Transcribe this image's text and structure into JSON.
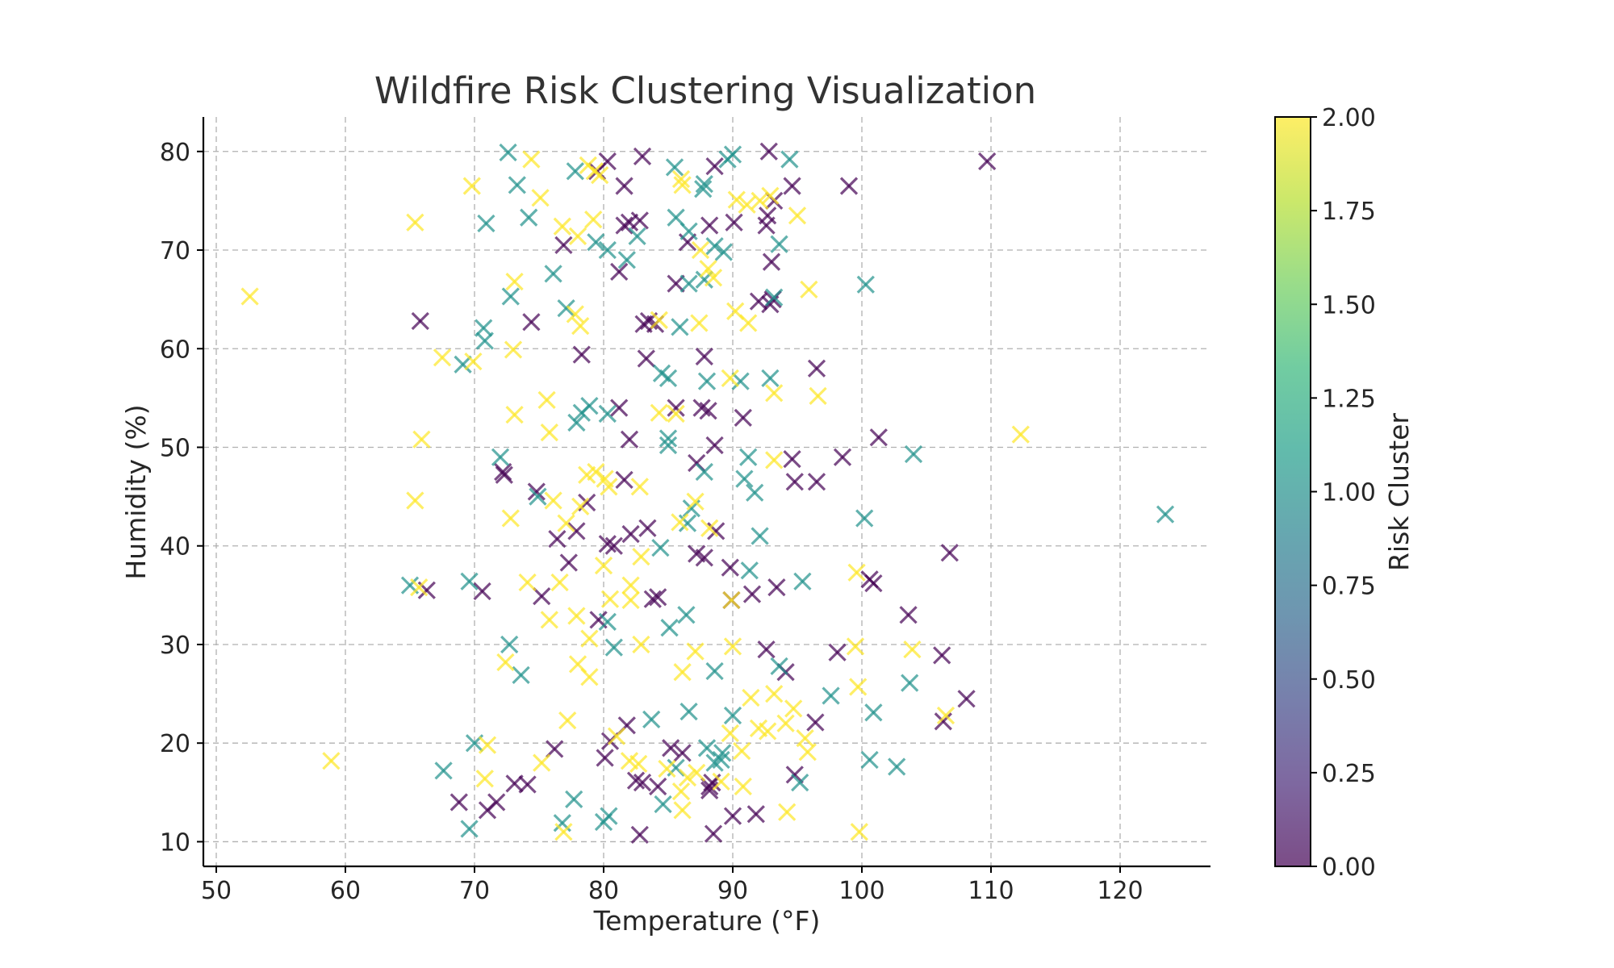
{
  "chart_data": {
    "type": "scatter",
    "title": "Wildfire Risk Clustering Visualization",
    "xlabel": "Temperature (°F)",
    "ylabel": "Humidity (%)",
    "xlim": [
      49,
      127
    ],
    "ylim": [
      7.5,
      83.5
    ],
    "xticks": [
      50,
      60,
      70,
      80,
      90,
      100,
      110,
      120
    ],
    "yticks": [
      10,
      20,
      30,
      40,
      50,
      60,
      70,
      80
    ],
    "grid": true,
    "marker": "x",
    "alpha": 0.7,
    "colorbar": {
      "label": "Risk Cluster",
      "range": [
        0,
        2
      ],
      "ticks": [
        "0.00",
        "0.25",
        "0.50",
        "0.75",
        "1.00",
        "1.25",
        "1.50",
        "1.75",
        "2.00"
      ],
      "colormap": "viridis",
      "colors": [
        "#440154",
        "#482878",
        "#3e4989",
        "#31688e",
        "#26828e",
        "#1f9e89",
        "#35b779",
        "#6ece58",
        "#b5de2b",
        "#fde725"
      ]
    },
    "series": [
      {
        "cluster": 0,
        "color": "#440154",
        "points": [
          [
            79.5,
            78
          ],
          [
            80.3,
            79
          ],
          [
            83,
            79.5
          ],
          [
            81.6,
            76.5
          ],
          [
            88.6,
            78.5
          ],
          [
            92.8,
            80
          ],
          [
            99,
            76.5
          ],
          [
            109.7,
            79
          ],
          [
            94.6,
            76.5
          ],
          [
            93.2,
            75
          ],
          [
            76.9,
            70.5
          ],
          [
            81.6,
            72.5
          ],
          [
            82.8,
            73
          ],
          [
            82,
            72.8
          ],
          [
            88.2,
            72.5
          ],
          [
            90.1,
            72.8
          ],
          [
            92.6,
            72.5
          ],
          [
            92.7,
            73.5
          ],
          [
            86.5,
            70.8
          ],
          [
            81.2,
            67.8
          ],
          [
            93,
            68.8
          ],
          [
            85.6,
            66.6
          ],
          [
            92,
            64.8
          ],
          [
            92.9,
            64.5
          ],
          [
            93.1,
            65
          ],
          [
            65.8,
            62.8
          ],
          [
            74.4,
            62.7
          ],
          [
            83.1,
            62.5
          ],
          [
            84,
            62.5
          ],
          [
            83.5,
            62.8
          ],
          [
            78.3,
            59.4
          ],
          [
            83.3,
            59
          ],
          [
            87.8,
            59.2
          ],
          [
            96.5,
            58
          ],
          [
            81.2,
            54
          ],
          [
            85.6,
            54
          ],
          [
            87.6,
            54
          ],
          [
            88.1,
            53.7
          ],
          [
            90.8,
            53
          ],
          [
            82,
            50.8
          ],
          [
            88.6,
            50.2
          ],
          [
            87.2,
            48.4
          ],
          [
            94.6,
            48.8
          ],
          [
            98.5,
            49
          ],
          [
            101.3,
            51
          ],
          [
            72.2,
            47.5
          ],
          [
            72.3,
            47.2
          ],
          [
            81.6,
            46.7
          ],
          [
            94.8,
            46.5
          ],
          [
            96.5,
            46.5
          ],
          [
            74.8,
            45.5
          ],
          [
            78.7,
            44.4
          ],
          [
            88.7,
            41.5
          ],
          [
            77.9,
            41.5
          ],
          [
            76.4,
            40.7
          ],
          [
            80.3,
            40.2
          ],
          [
            80.8,
            40
          ],
          [
            82.1,
            41.2
          ],
          [
            83.4,
            41.8
          ],
          [
            87.2,
            39.2
          ],
          [
            87.8,
            38.8
          ],
          [
            77.3,
            38.3
          ],
          [
            89.8,
            37.8
          ],
          [
            100.6,
            36.6
          ],
          [
            100.9,
            36.2
          ],
          [
            106.8,
            39.3
          ],
          [
            66.3,
            35.5
          ],
          [
            70.6,
            35.4
          ],
          [
            75.2,
            34.9
          ],
          [
            83.8,
            34.6
          ],
          [
            84.2,
            34.8
          ],
          [
            89.9,
            34.5
          ],
          [
            91.5,
            35.1
          ],
          [
            93.4,
            35.8
          ],
          [
            79.6,
            32.5
          ],
          [
            103.6,
            33
          ],
          [
            92.6,
            29.5
          ],
          [
            98.1,
            29.2
          ],
          [
            106.2,
            28.9
          ],
          [
            94.1,
            27.2
          ],
          [
            96.4,
            22.1
          ],
          [
            106.3,
            22.2
          ],
          [
            108.1,
            24.5
          ],
          [
            81.8,
            21.8
          ],
          [
            80.5,
            20.2
          ],
          [
            76.2,
            19.4
          ],
          [
            85.2,
            19.5
          ],
          [
            86.1,
            19
          ],
          [
            80.1,
            18.5
          ],
          [
            82.5,
            16.2
          ],
          [
            83,
            16
          ],
          [
            84.2,
            15.6
          ],
          [
            88.2,
            15.2
          ],
          [
            88.4,
            16
          ],
          [
            88.2,
            15.6
          ],
          [
            94.8,
            16.8
          ],
          [
            73.1,
            15.9
          ],
          [
            74.1,
            15.8
          ],
          [
            71.7,
            14
          ],
          [
            71,
            13.2
          ],
          [
            68.8,
            14
          ],
          [
            90,
            12.6
          ],
          [
            91.8,
            12.8
          ],
          [
            82.8,
            10.7
          ],
          [
            88.5,
            10.8
          ]
        ]
      },
      {
        "cluster": 1,
        "color": "#21918c",
        "points": [
          [
            72.6,
            79.9
          ],
          [
            85.5,
            78.4
          ],
          [
            77.8,
            78
          ],
          [
            89.6,
            79.2
          ],
          [
            90,
            79.7
          ],
          [
            94.4,
            79.2
          ],
          [
            73.3,
            76.6
          ],
          [
            87.8,
            76.7
          ],
          [
            87.7,
            76.2
          ],
          [
            70.9,
            72.7
          ],
          [
            74.2,
            73.3
          ],
          [
            85.6,
            73.3
          ],
          [
            86.6,
            71.9
          ],
          [
            82.6,
            71.4
          ],
          [
            79.4,
            70.8
          ],
          [
            80.3,
            70
          ],
          [
            88.6,
            70.4
          ],
          [
            89.3,
            69.8
          ],
          [
            93.6,
            70.6
          ],
          [
            81.8,
            69
          ],
          [
            76.1,
            67.6
          ],
          [
            87.8,
            67
          ],
          [
            86.6,
            66.6
          ],
          [
            100.3,
            66.5
          ],
          [
            72.8,
            65.3
          ],
          [
            93.2,
            65.2
          ],
          [
            77.1,
            64.1
          ],
          [
            70.7,
            62.1
          ],
          [
            70.8,
            60.8
          ],
          [
            85.9,
            62.2
          ],
          [
            69.1,
            58.4
          ],
          [
            84.5,
            57.5
          ],
          [
            85,
            57
          ],
          [
            88,
            56.7
          ],
          [
            90.6,
            56.7
          ],
          [
            92.9,
            57
          ],
          [
            78.9,
            54.2
          ],
          [
            78.3,
            53.5
          ],
          [
            77.9,
            52.5
          ],
          [
            80.3,
            53.4
          ],
          [
            85,
            50.9
          ],
          [
            85,
            50.2
          ],
          [
            87.8,
            47.5
          ],
          [
            91.2,
            49
          ],
          [
            90.9,
            46.8
          ],
          [
            91.7,
            45.4
          ],
          [
            104,
            49.3
          ],
          [
            72,
            49
          ],
          [
            74.9,
            45
          ],
          [
            86.8,
            43.8
          ],
          [
            86.5,
            42.3
          ],
          [
            92.1,
            41
          ],
          [
            100.2,
            42.8
          ],
          [
            123.5,
            43.2
          ],
          [
            84.4,
            39.8
          ],
          [
            91.3,
            37.5
          ],
          [
            95.4,
            36.4
          ],
          [
            65,
            36
          ],
          [
            69.6,
            36.4
          ],
          [
            86.4,
            33
          ],
          [
            85.1,
            31.7
          ],
          [
            80.3,
            32.3
          ],
          [
            80.8,
            29.7
          ],
          [
            72.7,
            30
          ],
          [
            73.6,
            26.9
          ],
          [
            88.6,
            27.3
          ],
          [
            93.6,
            27.8
          ],
          [
            97.6,
            24.8
          ],
          [
            103.7,
            26.1
          ],
          [
            86.6,
            23.2
          ],
          [
            90,
            22.8
          ],
          [
            83.7,
            22.4
          ],
          [
            100.9,
            23.1
          ],
          [
            70,
            20
          ],
          [
            88,
            19.5
          ],
          [
            89.1,
            18.3
          ],
          [
            89.2,
            19
          ],
          [
            88.6,
            18
          ],
          [
            100.6,
            18.3
          ],
          [
            102.7,
            17.6
          ],
          [
            67.6,
            17.2
          ],
          [
            85.6,
            17.5
          ],
          [
            77.7,
            14.3
          ],
          [
            80.4,
            12.6
          ],
          [
            80,
            12
          ],
          [
            76.8,
            11.9
          ],
          [
            69.6,
            11.3
          ],
          [
            84.6,
            13.8
          ],
          [
            95.2,
            16
          ]
        ]
      },
      {
        "cluster": 2,
        "color": "#fde725",
        "points": [
          [
            74.4,
            79.2
          ],
          [
            78.8,
            78.6
          ],
          [
            79.7,
            77.6
          ],
          [
            79.3,
            78
          ],
          [
            69.8,
            76.5
          ],
          [
            75.1,
            75.3
          ],
          [
            86,
            77.2
          ],
          [
            86.1,
            76.6
          ],
          [
            90.3,
            75.1
          ],
          [
            92.1,
            75
          ],
          [
            92.9,
            75.5
          ],
          [
            91.1,
            74.6
          ],
          [
            95,
            73.5
          ],
          [
            65.4,
            72.8
          ],
          [
            76.8,
            72.4
          ],
          [
            79.2,
            73.1
          ],
          [
            78,
            71.4
          ],
          [
            87.5,
            70
          ],
          [
            88.1,
            68.1
          ],
          [
            88.5,
            67.2
          ],
          [
            73.1,
            66.8
          ],
          [
            95.9,
            66
          ],
          [
            52.6,
            65.3
          ],
          [
            77.8,
            63.5
          ],
          [
            78.2,
            62.3
          ],
          [
            84.3,
            62.9
          ],
          [
            87.4,
            62.6
          ],
          [
            90.2,
            63.8
          ],
          [
            91.2,
            62.6
          ],
          [
            67.5,
            59.1
          ],
          [
            69.9,
            58.7
          ],
          [
            73,
            59.9
          ],
          [
            89.8,
            57
          ],
          [
            75.6,
            54.8
          ],
          [
            85.6,
            53.4
          ],
          [
            84.3,
            53.5
          ],
          [
            93.2,
            55.5
          ],
          [
            96.6,
            55.2
          ],
          [
            73.1,
            53.3
          ],
          [
            75.8,
            51.5
          ],
          [
            65.9,
            50.8
          ],
          [
            112.3,
            51.3
          ],
          [
            93.2,
            48.7
          ],
          [
            79.4,
            47.5
          ],
          [
            78.7,
            47.2
          ],
          [
            80.1,
            46.8
          ],
          [
            80.4,
            46
          ],
          [
            82.8,
            46
          ],
          [
            65.4,
            44.6
          ],
          [
            76.1,
            44.6
          ],
          [
            78.2,
            44
          ],
          [
            87.1,
            44.5
          ],
          [
            72.8,
            42.8
          ],
          [
            77.1,
            42.3
          ],
          [
            85.9,
            42.4
          ],
          [
            88.2,
            41.8
          ],
          [
            80,
            38
          ],
          [
            82.9,
            38.9
          ],
          [
            74.1,
            36.3
          ],
          [
            76.6,
            36.3
          ],
          [
            82.1,
            36
          ],
          [
            99.6,
            37.3
          ],
          [
            65.7,
            35.8
          ],
          [
            80.5,
            34.6
          ],
          [
            82.1,
            34.5
          ],
          [
            75.8,
            32.5
          ],
          [
            77.9,
            32.9
          ],
          [
            89.9,
            34.5
          ],
          [
            78.9,
            30.6
          ],
          [
            82.9,
            30
          ],
          [
            87.1,
            29.3
          ],
          [
            90,
            29.8
          ],
          [
            99.5,
            29.8
          ],
          [
            103.9,
            29.5
          ],
          [
            72.4,
            28.2
          ],
          [
            78,
            28
          ],
          [
            78.9,
            26.7
          ],
          [
            86.1,
            27.2
          ],
          [
            91.4,
            24.6
          ],
          [
            93.2,
            25
          ],
          [
            94.7,
            23.5
          ],
          [
            99.7,
            25.7
          ],
          [
            106.5,
            22.8
          ],
          [
            77.2,
            22.3
          ],
          [
            81,
            20.7
          ],
          [
            89.8,
            21
          ],
          [
            92,
            21.5
          ],
          [
            92.7,
            21.2
          ],
          [
            94.1,
            22
          ],
          [
            71,
            19.8
          ],
          [
            95.6,
            20.5
          ],
          [
            95.8,
            19.1
          ],
          [
            75.2,
            18
          ],
          [
            82,
            18.2
          ],
          [
            82.7,
            17.9
          ],
          [
            84.9,
            17.4
          ],
          [
            87.2,
            17
          ],
          [
            89.1,
            16.1
          ],
          [
            86.5,
            16.5
          ],
          [
            90.7,
            19.2
          ],
          [
            70.8,
            16.4
          ],
          [
            58.9,
            18.2
          ],
          [
            86,
            15.1
          ],
          [
            90.8,
            15.6
          ],
          [
            94.2,
            13
          ],
          [
            86.1,
            13.2
          ],
          [
            76.9,
            11
          ],
          [
            99.8,
            11
          ]
        ]
      }
    ]
  }
}
